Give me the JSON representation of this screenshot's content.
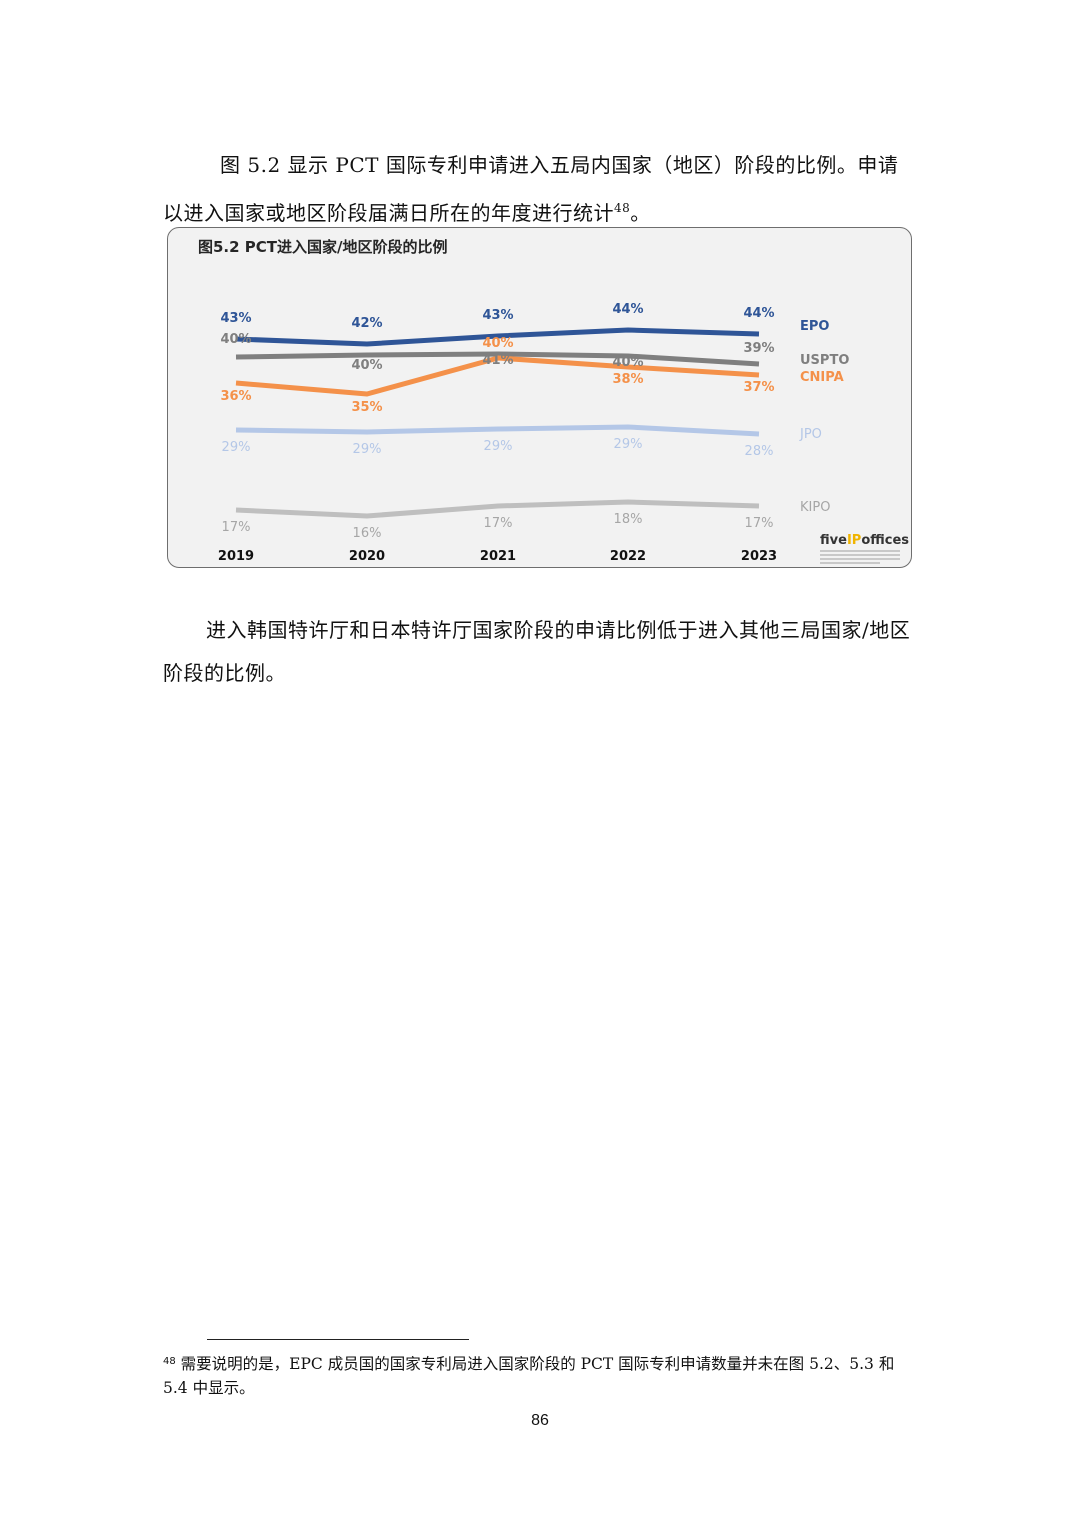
{
  "body": {
    "para1": "图 5.2 显示 PCT 国际专利申请进入五局内国家（地区）阶段的比例。申请以进入国家或地区阶段届满日所在的年度进行统计",
    "para1_footnote_ref": "48",
    "para1_end": "。",
    "para2": "进入韩国特许厅和日本特许厅国家阶段的申请比例低于进入其他三局国家/地区阶段的比例。"
  },
  "footnote": {
    "number": "48",
    "text": "需要说明的是，EPC 成员国的国家专利局进入国家阶段的 PCT 国际专利申请数量并未在图 5.2、5.3 和 5.4 中显示。"
  },
  "page_number": "86",
  "logo": {
    "pre": "five",
    "ip": "IP",
    "post": "offices"
  },
  "chart_data": {
    "type": "line",
    "title": "图5.2 PCT进入国家/地区阶段的比例",
    "xlabel": "",
    "ylabel": "",
    "categories": [
      "2019",
      "2020",
      "2021",
      "2022",
      "2023"
    ],
    "grid": false,
    "legend_position": "right (inline labels)",
    "series": [
      {
        "name": "EPO",
        "color": "#2f5597",
        "values": [
          43,
          42,
          43,
          44,
          44
        ],
        "labels": [
          "43%",
          "42%",
          "43%",
          "44%",
          "44%"
        ]
      },
      {
        "name": "USPTO",
        "color": "#7f7f7f",
        "values": [
          40,
          40,
          41,
          40,
          39
        ],
        "labels": [
          "40%",
          "40%",
          "41%",
          "40%",
          "39%"
        ]
      },
      {
        "name": "CNIPA",
        "color": "#f4914a",
        "values": [
          36,
          35,
          40,
          38,
          37
        ],
        "labels": [
          "36%",
          "35%",
          "40%",
          "38%",
          "37%"
        ]
      },
      {
        "name": "JPO",
        "color": "#b4c7e7",
        "values": [
          29,
          29,
          29,
          29,
          28
        ],
        "labels": [
          "29%",
          "29%",
          "29%",
          "29%",
          "28%"
        ]
      },
      {
        "name": "KIPO",
        "color": "#bfbfbf",
        "values": [
          17,
          16,
          17,
          18,
          17
        ],
        "labels": [
          "17%",
          "16%",
          "17%",
          "18%",
          "17%"
        ]
      }
    ]
  }
}
